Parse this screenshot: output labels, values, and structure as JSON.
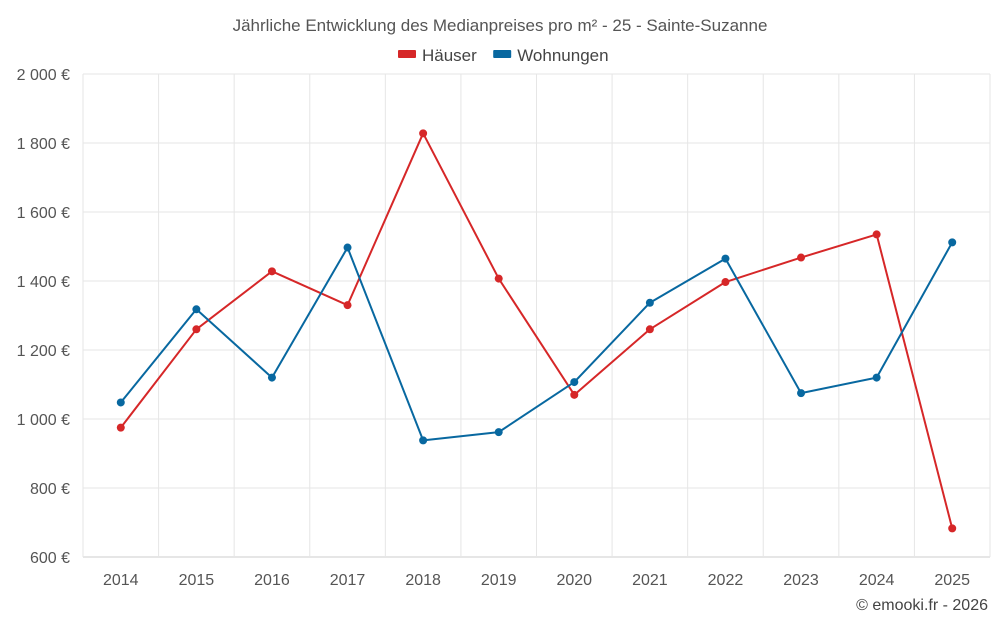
{
  "chart_data": {
    "type": "line",
    "title": "Jährliche Entwicklung des Medianpreises pro m² - 25 - Sainte-Suzanne",
    "categories": [
      "2014",
      "2015",
      "2016",
      "2017",
      "2018",
      "2019",
      "2020",
      "2021",
      "2022",
      "2023",
      "2024",
      "2025"
    ],
    "ylim": [
      600,
      2000
    ],
    "yticks": [
      600,
      800,
      1000,
      1200,
      1400,
      1600,
      1800,
      2000
    ],
    "ytick_labels": [
      "600 €",
      "800 €",
      "1 000 €",
      "1 200 €",
      "1 400 €",
      "1 600 €",
      "1 800 €",
      "2 000 €"
    ],
    "xlabel": "",
    "ylabel": "",
    "grid": true,
    "legend_position": "top-center",
    "series": [
      {
        "name": "Häuser",
        "color": "#d62728",
        "values": [
          975,
          1260,
          1428,
          1330,
          1828,
          1407,
          1070,
          1260,
          1397,
          1468,
          1535,
          683
        ]
      },
      {
        "name": "Wohnungen",
        "color": "#0868a0",
        "values": [
          1048,
          1318,
          1120,
          1497,
          938,
          962,
          1107,
          1337,
          1465,
          1075,
          1120,
          1512
        ]
      }
    ]
  },
  "credit": "© emooki.fr - 2026"
}
